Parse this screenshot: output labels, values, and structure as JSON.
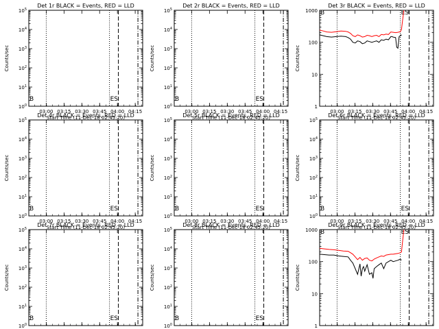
{
  "figure": {
    "xlabel": "Start Time (11-Dec-18 02:45:20)",
    "ylabel": "Counts/sec",
    "xticks": [
      "03:00",
      "03:15",
      "03:30",
      "03:45",
      "04:00",
      "04:15"
    ],
    "marker_labels": {
      "begin": "B",
      "end_pair": "ES"
    },
    "colors": {
      "events": "#000000",
      "lld": "#ff0000",
      "axes": "#000000",
      "background": "#ffffff"
    }
  },
  "chart_data": [
    {
      "type": "line",
      "panel": "det-1r",
      "title": "Det 1r BLACK = Events, RED = LLD",
      "x_unit": "minutes after 02:45:20",
      "ylim": [
        1,
        100000
      ],
      "yscale": "log",
      "ytick_labels": [
        "10^0",
        "10^1",
        "10^2",
        "10^3",
        "10^4",
        "10^5"
      ],
      "xlim": [
        0,
        96
      ],
      "xtick_values": [
        14.7,
        29.7,
        44.7,
        59.7,
        74.7,
        89.7
      ],
      "markers": {
        "dotted": [
          14.7,
          68.0
        ],
        "dashed": [
          75.5
        ],
        "dash_dot": [
          92.0
        ]
      },
      "series": []
    },
    {
      "type": "line",
      "panel": "det-2r",
      "title": "Det 2r BLACK = Events, RED = LLD",
      "x_unit": "minutes after 02:45:20",
      "ylim": [
        1,
        100000
      ],
      "yscale": "log",
      "ytick_labels": [
        "10^0",
        "10^1",
        "10^2",
        "10^3",
        "10^4",
        "10^5"
      ],
      "xlim": [
        0,
        96
      ],
      "xtick_values": [
        14.7,
        29.7,
        44.7,
        59.7,
        74.7,
        89.7
      ],
      "markers": {
        "dotted": [
          14.7,
          68.0
        ],
        "dashed": [
          75.5
        ],
        "dash_dot": [
          92.0
        ]
      },
      "series": []
    },
    {
      "type": "line",
      "panel": "det-3r",
      "title": "Det 3r BLACK = Events, RED = LLD",
      "x_unit": "minutes after 02:45:20",
      "ylim": [
        1,
        1000
      ],
      "yscale": "log",
      "ytick_labels": [
        "1",
        "10",
        "100",
        "1000"
      ],
      "xlim": [
        0,
        96
      ],
      "xtick_values": [
        14.7,
        29.7,
        44.7,
        59.7,
        74.7,
        89.7
      ],
      "markers": {
        "dotted": [
          14.7,
          68.0
        ],
        "dashed": [
          75.5
        ],
        "dash_dot": [
          92.0
        ]
      },
      "series": [
        {
          "color_key": "events",
          "x": [
            0,
            3,
            6,
            10,
            14,
            18,
            22,
            24,
            26,
            28,
            30,
            32,
            34,
            36,
            38,
            40,
            42,
            44,
            46,
            48,
            50,
            52,
            54,
            56,
            58,
            60,
            61,
            62,
            64,
            65,
            66,
            67,
            68,
            68.5,
            69
          ],
          "y": [
            170,
            160,
            150,
            145,
            150,
            155,
            150,
            140,
            125,
            100,
            95,
            110,
            105,
            90,
            95,
            110,
            105,
            100,
            105,
            110,
            100,
            120,
            115,
            125,
            120,
            150,
            150,
            145,
            140,
            70,
            65,
            150,
            160,
            170,
            160
          ]
        },
        {
          "color_key": "lld",
          "x": [
            0,
            3,
            6,
            10,
            14,
            18,
            22,
            24,
            26,
            28,
            30,
            32,
            34,
            36,
            38,
            40,
            42,
            44,
            46,
            48,
            50,
            52,
            54,
            56,
            58,
            60,
            62,
            64,
            66,
            68,
            68.5,
            69,
            70,
            71
          ],
          "y": [
            240,
            225,
            210,
            205,
            215,
            225,
            220,
            210,
            190,
            160,
            150,
            170,
            160,
            145,
            150,
            165,
            160,
            150,
            160,
            165,
            150,
            175,
            170,
            180,
            175,
            210,
            205,
            200,
            205,
            215,
            230,
            250,
            500,
            1000
          ]
        }
      ]
    },
    {
      "type": "line",
      "panel": "det-4r",
      "title": "Det 4r BLACK = Events, RED = LLD",
      "x_unit": "minutes after 02:45:20",
      "ylim": [
        1,
        100000
      ],
      "yscale": "log",
      "ytick_labels": [
        "10^0",
        "10^1",
        "10^2",
        "10^3",
        "10^4",
        "10^5"
      ],
      "xlim": [
        0,
        96
      ],
      "xtick_values": [
        14.7,
        29.7,
        44.7,
        59.7,
        74.7,
        89.7
      ],
      "markers": {
        "dotted": [
          14.7,
          68.0
        ],
        "dashed": [
          75.5
        ],
        "dash_dot": [
          92.0
        ]
      },
      "series": []
    },
    {
      "type": "line",
      "panel": "det-5r",
      "title": "Det 5r BLACK = Events, RED = LLD",
      "x_unit": "minutes after 02:45:20",
      "ylim": [
        1,
        100000
      ],
      "yscale": "log",
      "ytick_labels": [
        "10^0",
        "10^1",
        "10^2",
        "10^3",
        "10^4",
        "10^5"
      ],
      "xlim": [
        0,
        96
      ],
      "xtick_values": [
        14.7,
        29.7,
        44.7,
        59.7,
        74.7,
        89.7
      ],
      "markers": {
        "dotted": [
          14.7,
          68.0
        ],
        "dashed": [
          75.5
        ],
        "dash_dot": [
          92.0
        ]
      },
      "series": []
    },
    {
      "type": "line",
      "panel": "det-6r",
      "title": "Det 6r BLACK = Events, RED = LLD",
      "x_unit": "minutes after 02:45:20",
      "ylim": [
        1,
        100000
      ],
      "yscale": "log",
      "ytick_labels": [
        "10^0",
        "10^1",
        "10^2",
        "10^3",
        "10^4",
        "10^5"
      ],
      "xlim": [
        0,
        96
      ],
      "xtick_values": [
        14.7,
        29.7,
        44.7,
        59.7,
        74.7,
        89.7
      ],
      "markers": {
        "dotted": [
          14.7,
          68.0
        ],
        "dashed": [
          75.5
        ],
        "dash_dot": [
          92.0
        ]
      },
      "series": []
    },
    {
      "type": "line",
      "panel": "det-7r",
      "title": "Det 7r BLACK = Events, RED = LLD",
      "x_unit": "minutes after 02:45:20",
      "ylim": [
        1,
        100000
      ],
      "yscale": "log",
      "ytick_labels": [
        "10^0",
        "10^1",
        "10^2",
        "10^3",
        "10^4",
        "10^5"
      ],
      "xlim": [
        0,
        96
      ],
      "xtick_values": [
        14.7,
        29.7,
        44.7,
        59.7,
        74.7,
        89.7
      ],
      "markers": {
        "dotted": [
          14.7,
          68.0
        ],
        "dashed": [
          75.5
        ],
        "dash_dot": [
          92.0
        ]
      },
      "series": []
    },
    {
      "type": "line",
      "panel": "det-8r",
      "title": "Det 8r BLACK = Events, RED = LLD",
      "x_unit": "minutes after 02:45:20",
      "ylim": [
        1,
        100000
      ],
      "yscale": "log",
      "ytick_labels": [
        "10^0",
        "10^1",
        "10^2",
        "10^3",
        "10^4",
        "10^5"
      ],
      "xlim": [
        0,
        96
      ],
      "xtick_values": [
        14.7,
        29.7,
        44.7,
        59.7,
        74.7,
        89.7
      ],
      "markers": {
        "dotted": [
          14.7,
          68.0
        ],
        "dashed": [
          75.5
        ],
        "dash_dot": [
          92.0
        ]
      },
      "series": []
    },
    {
      "type": "line",
      "panel": "det-9r",
      "title": "Det 9r BLACK = Events, RED = LLD",
      "x_unit": "minutes after 02:45:20",
      "ylim": [
        1,
        1000
      ],
      "yscale": "log",
      "ytick_labels": [
        "1",
        "10",
        "100",
        "1000"
      ],
      "xlim": [
        0,
        96
      ],
      "xtick_values": [
        14.7,
        29.7,
        44.7,
        59.7,
        74.7,
        89.7
      ],
      "markers": {
        "dotted": [
          14.7,
          68.0
        ],
        "dashed": [
          75.5
        ],
        "dash_dot": [
          92.0
        ]
      },
      "series": [
        {
          "color_key": "events",
          "x": [
            0,
            4,
            8,
            12,
            16,
            20,
            24,
            26,
            28,
            30,
            32,
            34,
            35,
            36,
            37,
            38,
            40,
            42,
            44,
            45,
            46,
            48,
            50,
            52,
            54,
            56,
            58,
            60,
            62,
            64,
            66,
            68,
            69
          ],
          "y": [
            170,
            165,
            160,
            160,
            150,
            145,
            140,
            110,
            90,
            60,
            40,
            85,
            35,
            60,
            70,
            50,
            80,
            40,
            45,
            30,
            60,
            70,
            80,
            90,
            60,
            90,
            100,
            110,
            100,
            105,
            110,
            120,
            110
          ]
        },
        {
          "color_key": "lld",
          "x": [
            0,
            4,
            8,
            12,
            16,
            20,
            24,
            26,
            28,
            30,
            32,
            34,
            36,
            38,
            40,
            42,
            44,
            46,
            48,
            50,
            52,
            54,
            56,
            58,
            60,
            62,
            64,
            66,
            68,
            69,
            70,
            71
          ],
          "y": [
            260,
            250,
            240,
            235,
            225,
            215,
            210,
            190,
            170,
            140,
            115,
            135,
            110,
            125,
            130,
            110,
            105,
            120,
            130,
            140,
            150,
            145,
            160,
            165,
            170,
            170,
            175,
            180,
            190,
            200,
            450,
            1000
          ]
        }
      ]
    }
  ]
}
